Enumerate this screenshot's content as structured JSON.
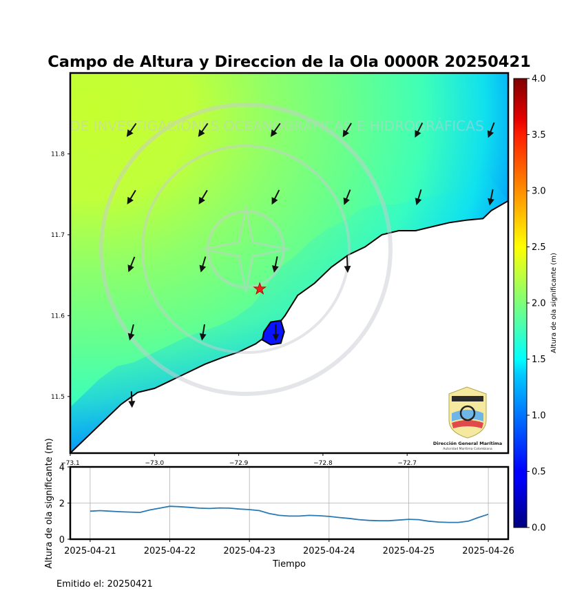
{
  "figure": {
    "title": "Campo de Altura y Direccion de la Ola 0000R 20250421",
    "issued_label": "Emitido el: 20250421"
  },
  "chart_data": [
    {
      "type": "heatmap",
      "title": "Campo de Altura y Direccion de la Ola 0000R 20250421",
      "x_ticks": [
        -73.1,
        -73.0,
        -72.9,
        -72.8,
        -72.7
      ],
      "x_tick_labels": [
        "−73.1",
        "−73.0",
        "−72.9",
        "−72.8",
        "−72.7"
      ],
      "y_ticks": [
        11.5,
        11.6,
        11.7,
        11.8
      ],
      "y_tick_labels": [
        "11.5",
        "11.6",
        "11.7",
        "11.8"
      ],
      "xlim": [
        -73.1,
        -72.58
      ],
      "ylim": [
        11.43,
        11.9
      ],
      "colorbar": {
        "label": "Altura de ola significante (m)",
        "range": [
          0.0,
          4.0
        ],
        "ticks": [
          0.0,
          0.5,
          1.0,
          1.5,
          2.0,
          2.5,
          3.0,
          3.5,
          4.0
        ],
        "tick_labels": [
          "0.0",
          "0.5",
          "1.0",
          "1.5",
          "2.0",
          "2.5",
          "3.0",
          "3.5",
          "4.0"
        ],
        "colormap": "jet"
      },
      "marker": {
        "symbol": "star",
        "color": "#e8221b",
        "lon": -72.875,
        "lat": 11.633
      },
      "coastline": [
        [
          -73.1,
          11.43
        ],
        [
          -73.08,
          11.45
        ],
        [
          -73.06,
          11.47
        ],
        [
          -73.04,
          11.49
        ],
        [
          -73.02,
          11.505
        ],
        [
          -73.0,
          11.51
        ],
        [
          -72.98,
          11.52
        ],
        [
          -72.96,
          11.53
        ],
        [
          -72.94,
          11.54
        ],
        [
          -72.92,
          11.548
        ],
        [
          -72.9,
          11.555
        ],
        [
          -72.88,
          11.565
        ],
        [
          -72.86,
          11.58
        ],
        [
          -72.845,
          11.6
        ],
        [
          -72.83,
          11.625
        ],
        [
          -72.81,
          11.64
        ],
        [
          -72.79,
          11.66
        ],
        [
          -72.77,
          11.675
        ],
        [
          -72.75,
          11.685
        ],
        [
          -72.73,
          11.7
        ],
        [
          -72.71,
          11.705
        ],
        [
          -72.69,
          11.705
        ],
        [
          -72.67,
          11.71
        ],
        [
          -72.65,
          11.715
        ],
        [
          -72.63,
          11.718
        ],
        [
          -72.61,
          11.72
        ],
        [
          -72.6,
          11.73
        ],
        [
          -72.58,
          11.742
        ]
      ],
      "lagoon": [
        [
          -72.87,
          11.58
        ],
        [
          -72.862,
          11.592
        ],
        [
          -72.85,
          11.594
        ],
        [
          -72.846,
          11.58
        ],
        [
          -72.85,
          11.566
        ],
        [
          -72.862,
          11.564
        ],
        [
          -72.872,
          11.57
        ]
      ],
      "arrows": [
        {
          "lon": -73.027,
          "lat": 11.83,
          "u": -0.35,
          "v": -0.5
        },
        {
          "lon": -72.942,
          "lat": 11.83,
          "u": -0.35,
          "v": -0.5
        },
        {
          "lon": -72.856,
          "lat": 11.83,
          "u": -0.35,
          "v": -0.5
        },
        {
          "lon": -72.771,
          "lat": 11.83,
          "u": -0.3,
          "v": -0.5
        },
        {
          "lon": -72.686,
          "lat": 11.83,
          "u": -0.25,
          "v": -0.5
        },
        {
          "lon": -72.6,
          "lat": 11.83,
          "u": -0.2,
          "v": -0.5
        },
        {
          "lon": -73.027,
          "lat": 11.747,
          "u": -0.3,
          "v": -0.5
        },
        {
          "lon": -72.942,
          "lat": 11.747,
          "u": -0.3,
          "v": -0.5
        },
        {
          "lon": -72.856,
          "lat": 11.747,
          "u": -0.25,
          "v": -0.5
        },
        {
          "lon": -72.771,
          "lat": 11.747,
          "u": -0.2,
          "v": -0.5
        },
        {
          "lon": -72.686,
          "lat": 11.747,
          "u": -0.15,
          "v": -0.5
        },
        {
          "lon": -72.6,
          "lat": 11.747,
          "u": -0.1,
          "v": -0.5
        },
        {
          "lon": -73.027,
          "lat": 11.664,
          "u": -0.2,
          "v": -0.5
        },
        {
          "lon": -72.942,
          "lat": 11.664,
          "u": -0.15,
          "v": -0.5
        },
        {
          "lon": -72.856,
          "lat": 11.664,
          "u": -0.1,
          "v": -0.5
        },
        {
          "lon": -72.771,
          "lat": 11.664,
          "u": 0.02,
          "v": -0.5
        },
        {
          "lon": -73.027,
          "lat": 11.58,
          "u": -0.12,
          "v": -0.5
        },
        {
          "lon": -72.942,
          "lat": 11.58,
          "u": -0.08,
          "v": -0.5
        },
        {
          "lon": -72.856,
          "lat": 11.58,
          "u": 0.0,
          "v": -0.5
        },
        {
          "lon": -73.027,
          "lat": 11.497,
          "u": 0.02,
          "v": -0.5
        }
      ]
    },
    {
      "type": "line",
      "xlabel": "Tiempo",
      "ylabel": "Altura de ola significante (m)",
      "ylim": [
        0,
        4
      ],
      "y_ticks": [
        0,
        2,
        4
      ],
      "xlim": [
        -0.25,
        5.25
      ],
      "x_ticks": [
        0,
        1,
        2,
        3,
        4,
        5
      ],
      "x_tick_labels": [
        "2025-04-21",
        "2025-04-22",
        "2025-04-23",
        "2025-04-24",
        "2025-04-25",
        "2025-04-26"
      ],
      "grid": true,
      "series": [
        {
          "color": "#2878b4",
          "x": [
            0,
            0.125,
            0.25,
            0.375,
            0.5,
            0.625,
            0.75,
            0.875,
            1.0,
            1.125,
            1.25,
            1.375,
            1.5,
            1.625,
            1.75,
            1.875,
            2.0,
            2.125,
            2.25,
            2.375,
            2.5,
            2.625,
            2.75,
            2.875,
            3.0,
            3.125,
            3.25,
            3.375,
            3.5,
            3.625,
            3.75,
            3.875,
            4.0,
            4.125,
            4.25,
            4.375,
            4.5,
            4.625,
            4.75,
            4.875,
            5.0
          ],
          "y": [
            1.55,
            1.58,
            1.55,
            1.52,
            1.5,
            1.48,
            1.62,
            1.72,
            1.82,
            1.8,
            1.76,
            1.72,
            1.7,
            1.73,
            1.72,
            1.67,
            1.64,
            1.58,
            1.42,
            1.32,
            1.28,
            1.28,
            1.32,
            1.3,
            1.26,
            1.2,
            1.15,
            1.08,
            1.04,
            1.02,
            1.02,
            1.06,
            1.1,
            1.08,
            1.0,
            0.95,
            0.93,
            0.93,
            1.0,
            1.2,
            1.38
          ]
        }
      ]
    }
  ]
}
